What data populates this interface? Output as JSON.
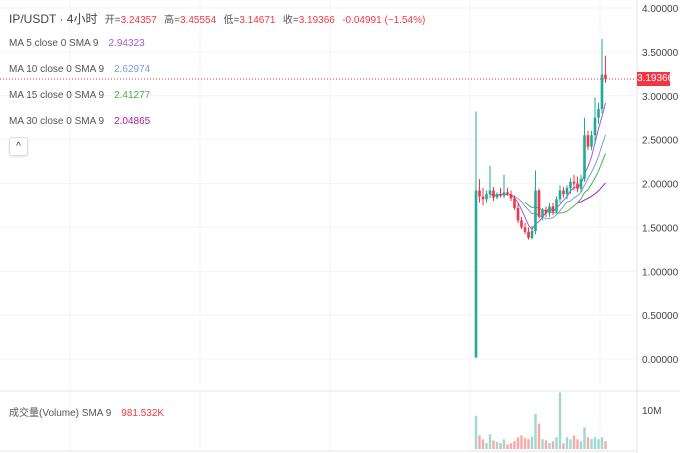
{
  "header": {
    "symbol": "IP/USDT · 4小时",
    "open_label": "开=",
    "open": "3.24357",
    "high_label": "高=",
    "high": "3.45554",
    "low_label": "低=",
    "low": "3.14671",
    "close_label": "收=",
    "close": "3.19366",
    "change": "-0.04991 (−1.54%)"
  },
  "indicators": [
    {
      "label": "MA 5 close 0 SMA 9",
      "value": "2.94323",
      "color": "#9c5dd6",
      "period": 5
    },
    {
      "label": "MA 10 close 0 SMA 9",
      "value": "2.62974",
      "color": "#7b9fe0",
      "period": 10
    },
    {
      "label": "MA 15 close 0 SMA 9",
      "value": "2.41277",
      "color": "#4caf50",
      "period": 15
    },
    {
      "label": "MA 30 close 0 SMA 9",
      "value": "2.04865",
      "color": "#a0249a",
      "period": 30
    }
  ],
  "collapse_icon": "chevron-up-icon",
  "collapse_glyph": "^",
  "volume_legend": {
    "label": "成交量(Volume) SMA 9",
    "value": "981.532K"
  },
  "last_price": "3.19366",
  "colors": {
    "up": "#22ab94",
    "down": "#f23645",
    "volume_up": "#9fd9cd",
    "volume_down": "#f7a9a7"
  },
  "chart_data": {
    "type": "candlestick",
    "price_axis": {
      "ticks": [
        "4.00000",
        "3.50000",
        "3.00000",
        "2.50000",
        "2.00000",
        "1.50000",
        "1.00000",
        "0.50000",
        "0.00000"
      ],
      "range": [
        0,
        4
      ]
    },
    "volume_axis": {
      "ticks": [
        "10M"
      ]
    },
    "ohlc": [
      [
        0.02,
        2.82,
        0.01,
        1.92
      ],
      [
        1.92,
        2.05,
        1.78,
        1.85
      ],
      [
        1.85,
        1.95,
        1.75,
        1.82
      ],
      [
        1.82,
        1.92,
        1.78,
        1.88
      ],
      [
        1.88,
        2.2,
        1.83,
        1.92
      ],
      [
        1.92,
        1.96,
        1.8,
        1.84
      ],
      [
        1.84,
        1.9,
        1.82,
        1.88
      ],
      [
        1.88,
        1.95,
        1.84,
        1.86
      ],
      [
        1.86,
        2.1,
        1.83,
        1.9
      ],
      [
        1.9,
        1.95,
        1.86,
        1.88
      ],
      [
        1.88,
        1.92,
        1.8,
        1.83
      ],
      [
        1.83,
        1.86,
        1.7,
        1.72
      ],
      [
        1.72,
        1.78,
        1.55,
        1.58
      ],
      [
        1.58,
        1.62,
        1.48,
        1.5
      ],
      [
        1.5,
        1.55,
        1.42,
        1.45
      ],
      [
        1.45,
        1.5,
        1.36,
        1.38
      ],
      [
        1.38,
        1.52,
        1.36,
        1.46
      ],
      [
        1.46,
        2.15,
        1.42,
        1.92
      ],
      [
        1.92,
        1.94,
        1.6,
        1.62
      ],
      [
        1.62,
        1.72,
        1.58,
        1.7
      ],
      [
        1.7,
        1.74,
        1.62,
        1.66
      ],
      [
        1.66,
        1.78,
        1.62,
        1.74
      ],
      [
        1.74,
        1.78,
        1.64,
        1.68
      ],
      [
        1.68,
        1.85,
        1.66,
        1.82
      ],
      [
        1.82,
        1.98,
        1.78,
        1.92
      ],
      [
        1.92,
        1.96,
        1.84,
        1.88
      ],
      [
        1.88,
        1.98,
        1.82,
        1.95
      ],
      [
        1.95,
        2.06,
        1.88,
        2.02
      ],
      [
        2.02,
        2.1,
        1.92,
        2.0
      ],
      [
        2.0,
        2.08,
        1.9,
        1.94
      ],
      [
        1.94,
        2.1,
        1.9,
        2.05
      ],
      [
        2.05,
        2.75,
        2.02,
        2.55
      ],
      [
        2.55,
        2.6,
        2.38,
        2.42
      ],
      [
        2.42,
        2.6,
        2.38,
        2.55
      ],
      [
        2.55,
        2.98,
        2.45,
        2.75
      ],
      [
        2.75,
        2.92,
        2.68,
        2.85
      ],
      [
        2.85,
        3.65,
        2.8,
        3.24
      ],
      [
        3.24,
        3.45554,
        3.14671,
        3.19366
      ]
    ],
    "volume_millions": [
      8.5,
      3.5,
      2.5,
      1.5,
      3.8,
      2.2,
      1.8,
      1.5,
      2.5,
      1.2,
      1.5,
      2.0,
      3.0,
      3.5,
      2.8,
      2.5,
      3.2,
      9.0,
      6.5,
      2.5,
      2.2,
      1.5,
      2.0,
      3.0,
      14.5,
      1.5,
      3.0,
      2.5,
      3.5,
      2.5,
      2.0,
      5.5,
      3.0,
      2.5,
      3.0,
      2.5,
      3.0,
      2.0
    ]
  }
}
